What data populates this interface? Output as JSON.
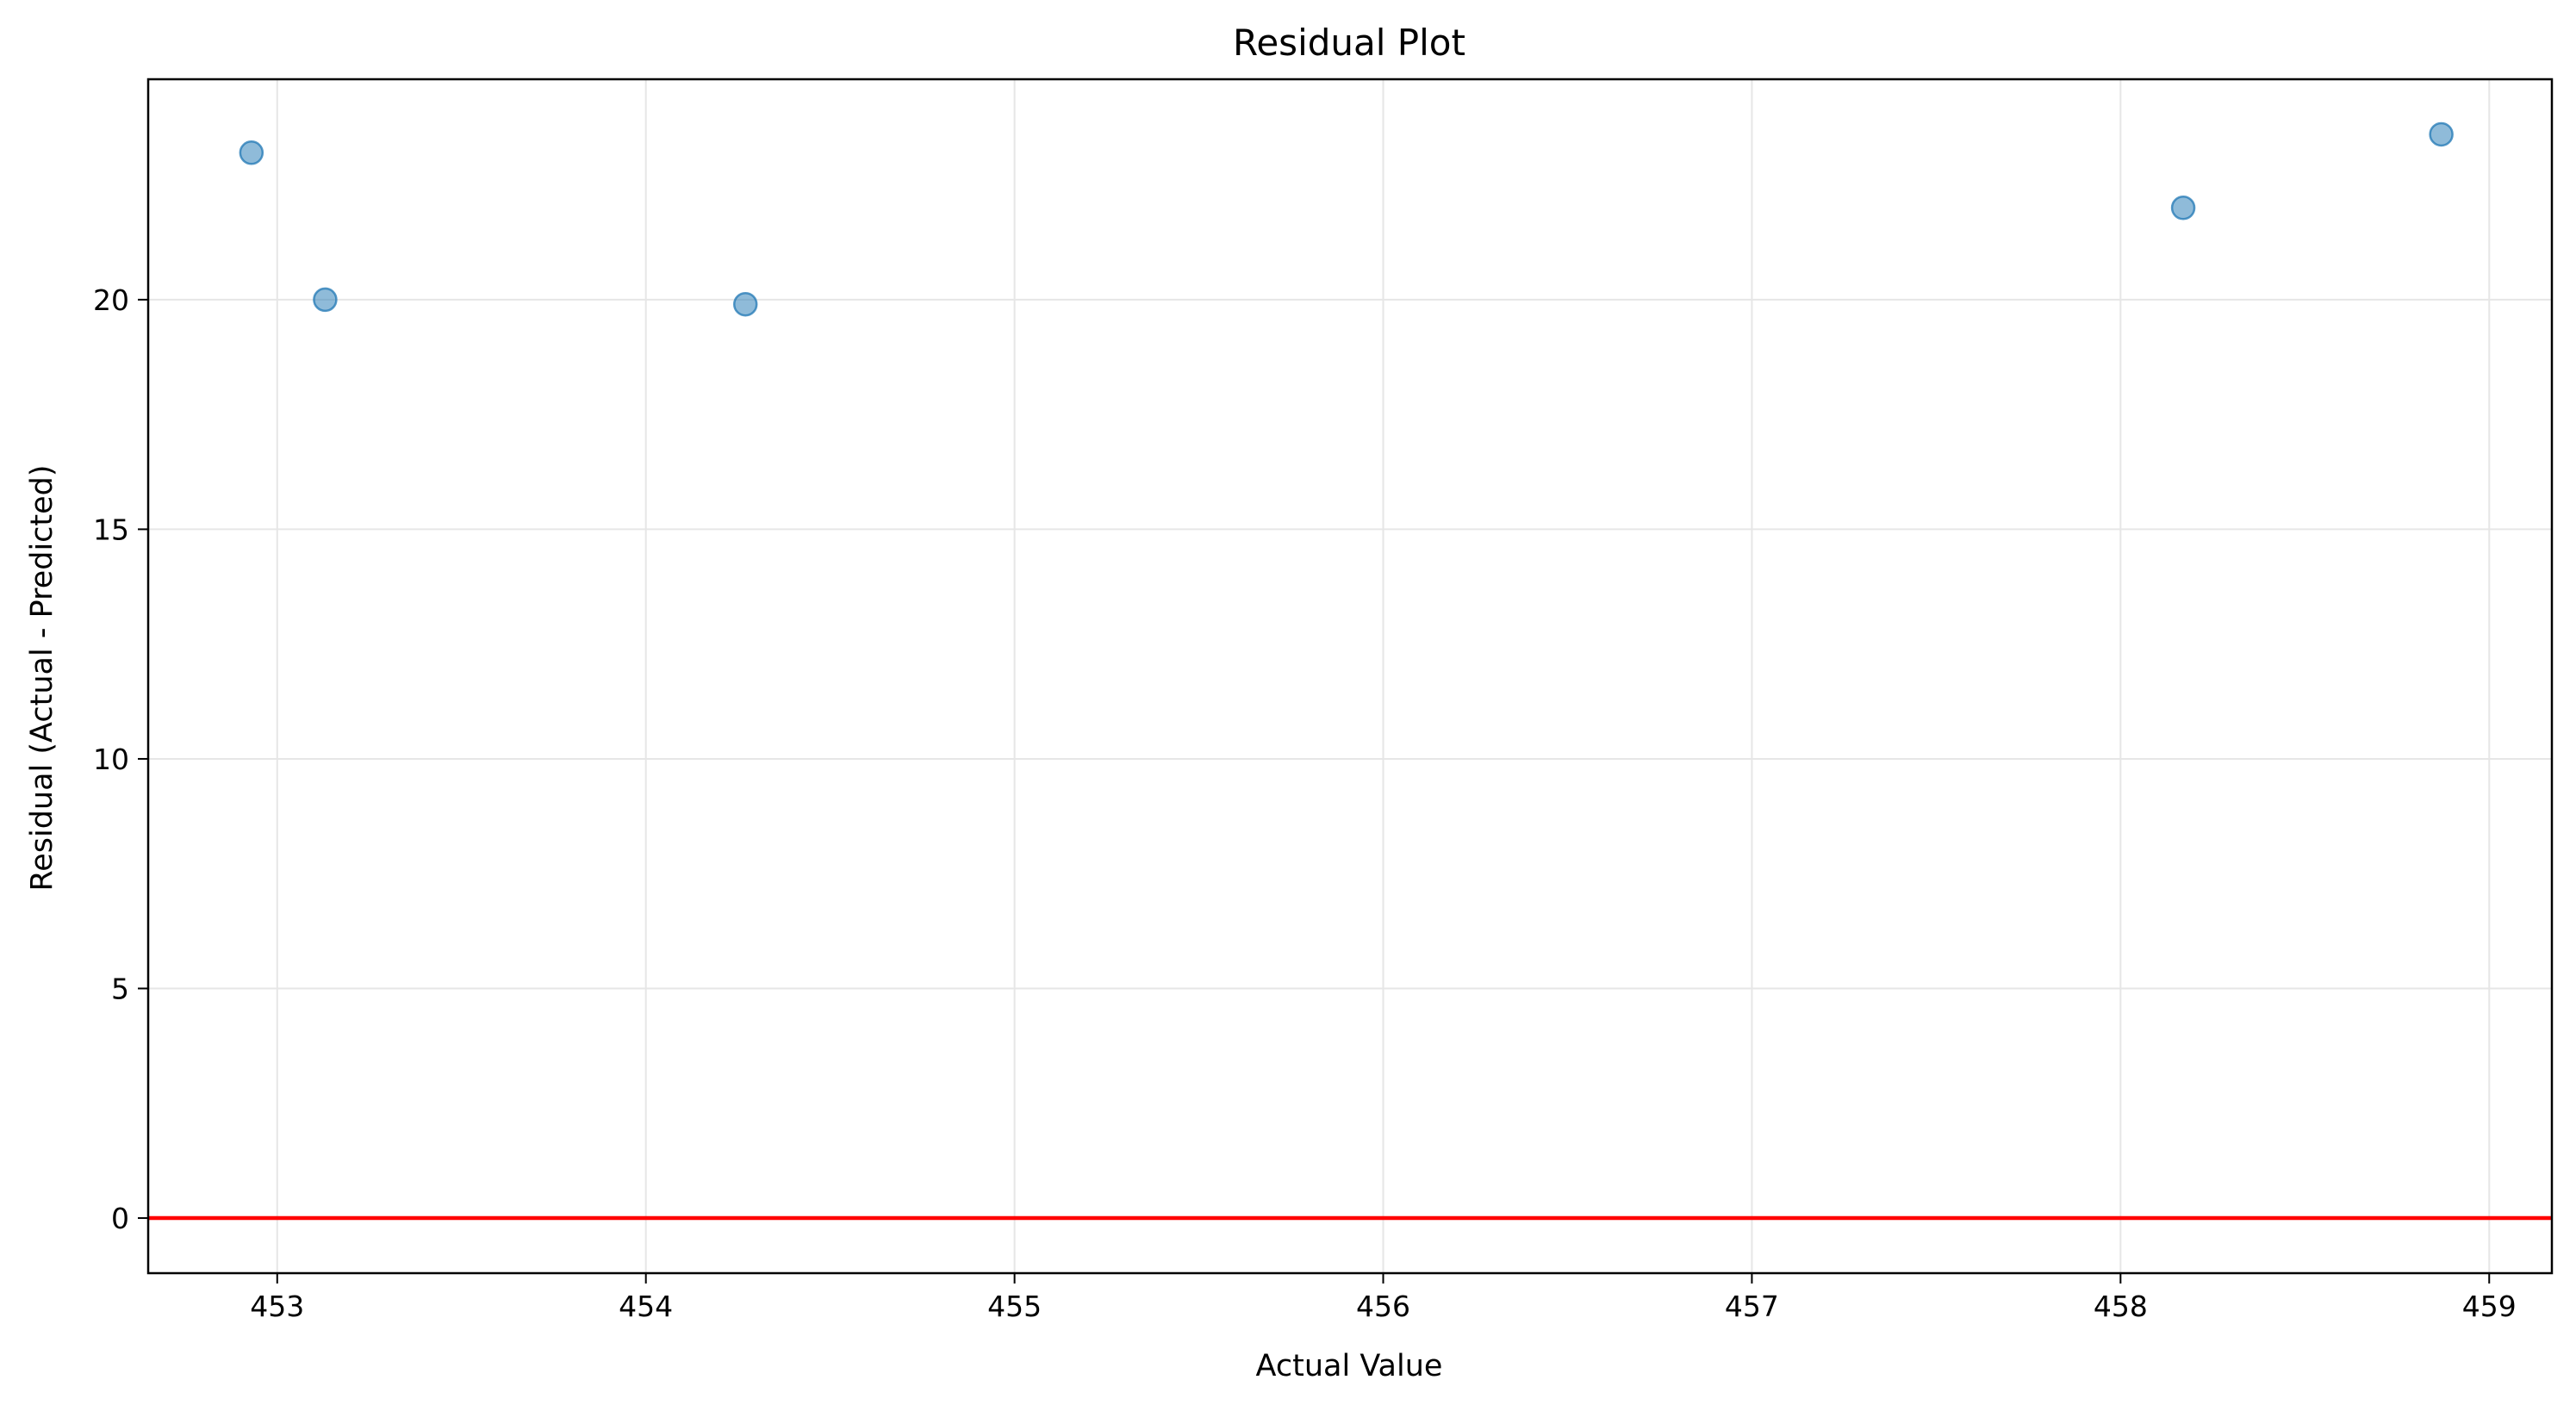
{
  "chart_data": {
    "type": "scatter",
    "title": "Residual Plot",
    "xlabel": "Actual Value",
    "ylabel": "Residual (Actual - Predicted)",
    "xlim": [
      452.65,
      459.17
    ],
    "ylim": [
      -1.2,
      24.8
    ],
    "xticks": [
      453,
      454,
      455,
      456,
      457,
      458,
      459
    ],
    "yticks": [
      0,
      5,
      10,
      15,
      20
    ],
    "grid": true,
    "series": [
      {
        "points": [
          {
            "x": 452.93,
            "y": 23.2
          },
          {
            "x": 453.13,
            "y": 20.0
          },
          {
            "x": 454.27,
            "y": 19.9
          },
          {
            "x": 458.17,
            "y": 22.0
          },
          {
            "x": 458.87,
            "y": 23.6
          }
        ]
      }
    ],
    "reference_line": {
      "y": 0
    },
    "colors": {
      "points": "#1f77b4",
      "reference_line": "#ff0000",
      "grid": "#e6e6e6"
    }
  }
}
